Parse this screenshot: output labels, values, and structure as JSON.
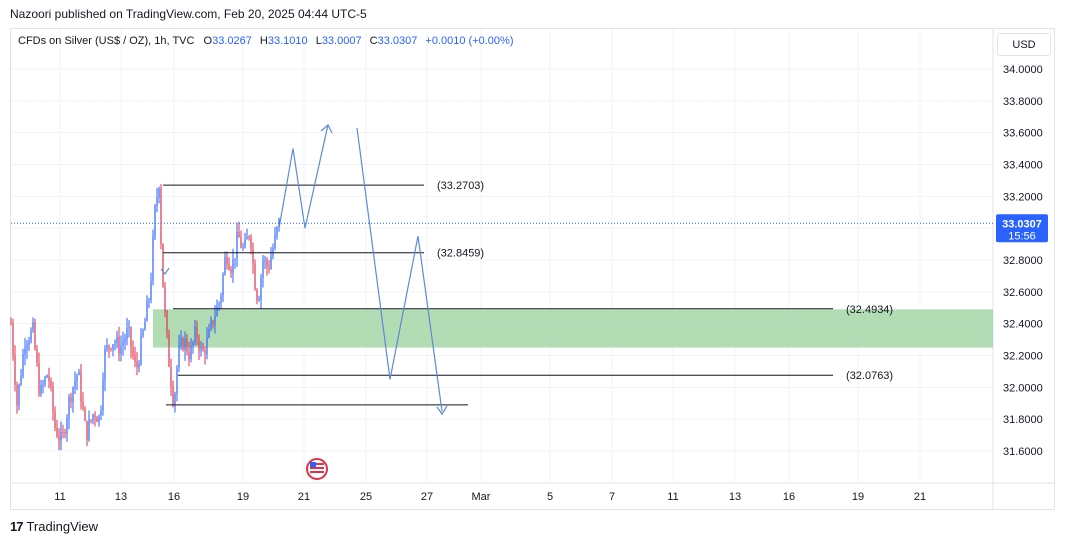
{
  "header": {
    "publish_text": "Nazoori published on TradingView.com, Feb 20, 2025 04:44 UTC-5"
  },
  "legend": {
    "symbol": "CFDs on Silver (US$ / OZ), 1h, TVC",
    "open_label": "O",
    "open": "33.0267",
    "high_label": "H",
    "high": "33.1010",
    "low_label": "L",
    "low": "33.0007",
    "close_label": "C",
    "close": "33.0307",
    "change": "+0.0010 (+0.00%)"
  },
  "currency": "USD",
  "footer": {
    "brand": "TradingView"
  },
  "price_tag": {
    "price": "33.0307",
    "countdown": "15:56"
  },
  "colors": {
    "up": "#2962ff",
    "down": "#e0314b",
    "zone": "#a5d6a7",
    "path": "#5b8bd6",
    "tag": "#2962ff",
    "grid": "#f0f3fa"
  },
  "chart_data": {
    "type": "candlestick",
    "title": "CFDs on Silver (US$ / OZ), 1h, TVC",
    "ylim": [
      31.4,
      34.1
    ],
    "y_ticks": [
      "34.0000",
      "33.8000",
      "33.6000",
      "33.4000",
      "33.2000",
      "33.0000",
      "32.8000",
      "32.6000",
      "32.4000",
      "32.2000",
      "32.0000",
      "31.8000",
      "31.6000"
    ],
    "x_ticks": [
      "11",
      "13",
      "16",
      "19",
      "21",
      "25",
      "27",
      "Mar",
      "5",
      "7",
      "11",
      "13",
      "16",
      "19",
      "21"
    ],
    "last_price": 33.0307,
    "levels": [
      {
        "label": "(33.2703)",
        "value": 33.2703
      },
      {
        "label": "(32.8459)",
        "value": 32.8459
      },
      {
        "label": "(32.4934)",
        "value": 32.4934
      },
      {
        "label": "(32.0763)",
        "value": 32.0763
      }
    ],
    "bottom_level": 31.89,
    "zone": {
      "from": 32.49,
      "to": 32.25
    },
    "projected_path": [
      33.0,
      33.5,
      33.0,
      33.65,
      null,
      33.63,
      32.05,
      32.95,
      31.85
    ]
  }
}
